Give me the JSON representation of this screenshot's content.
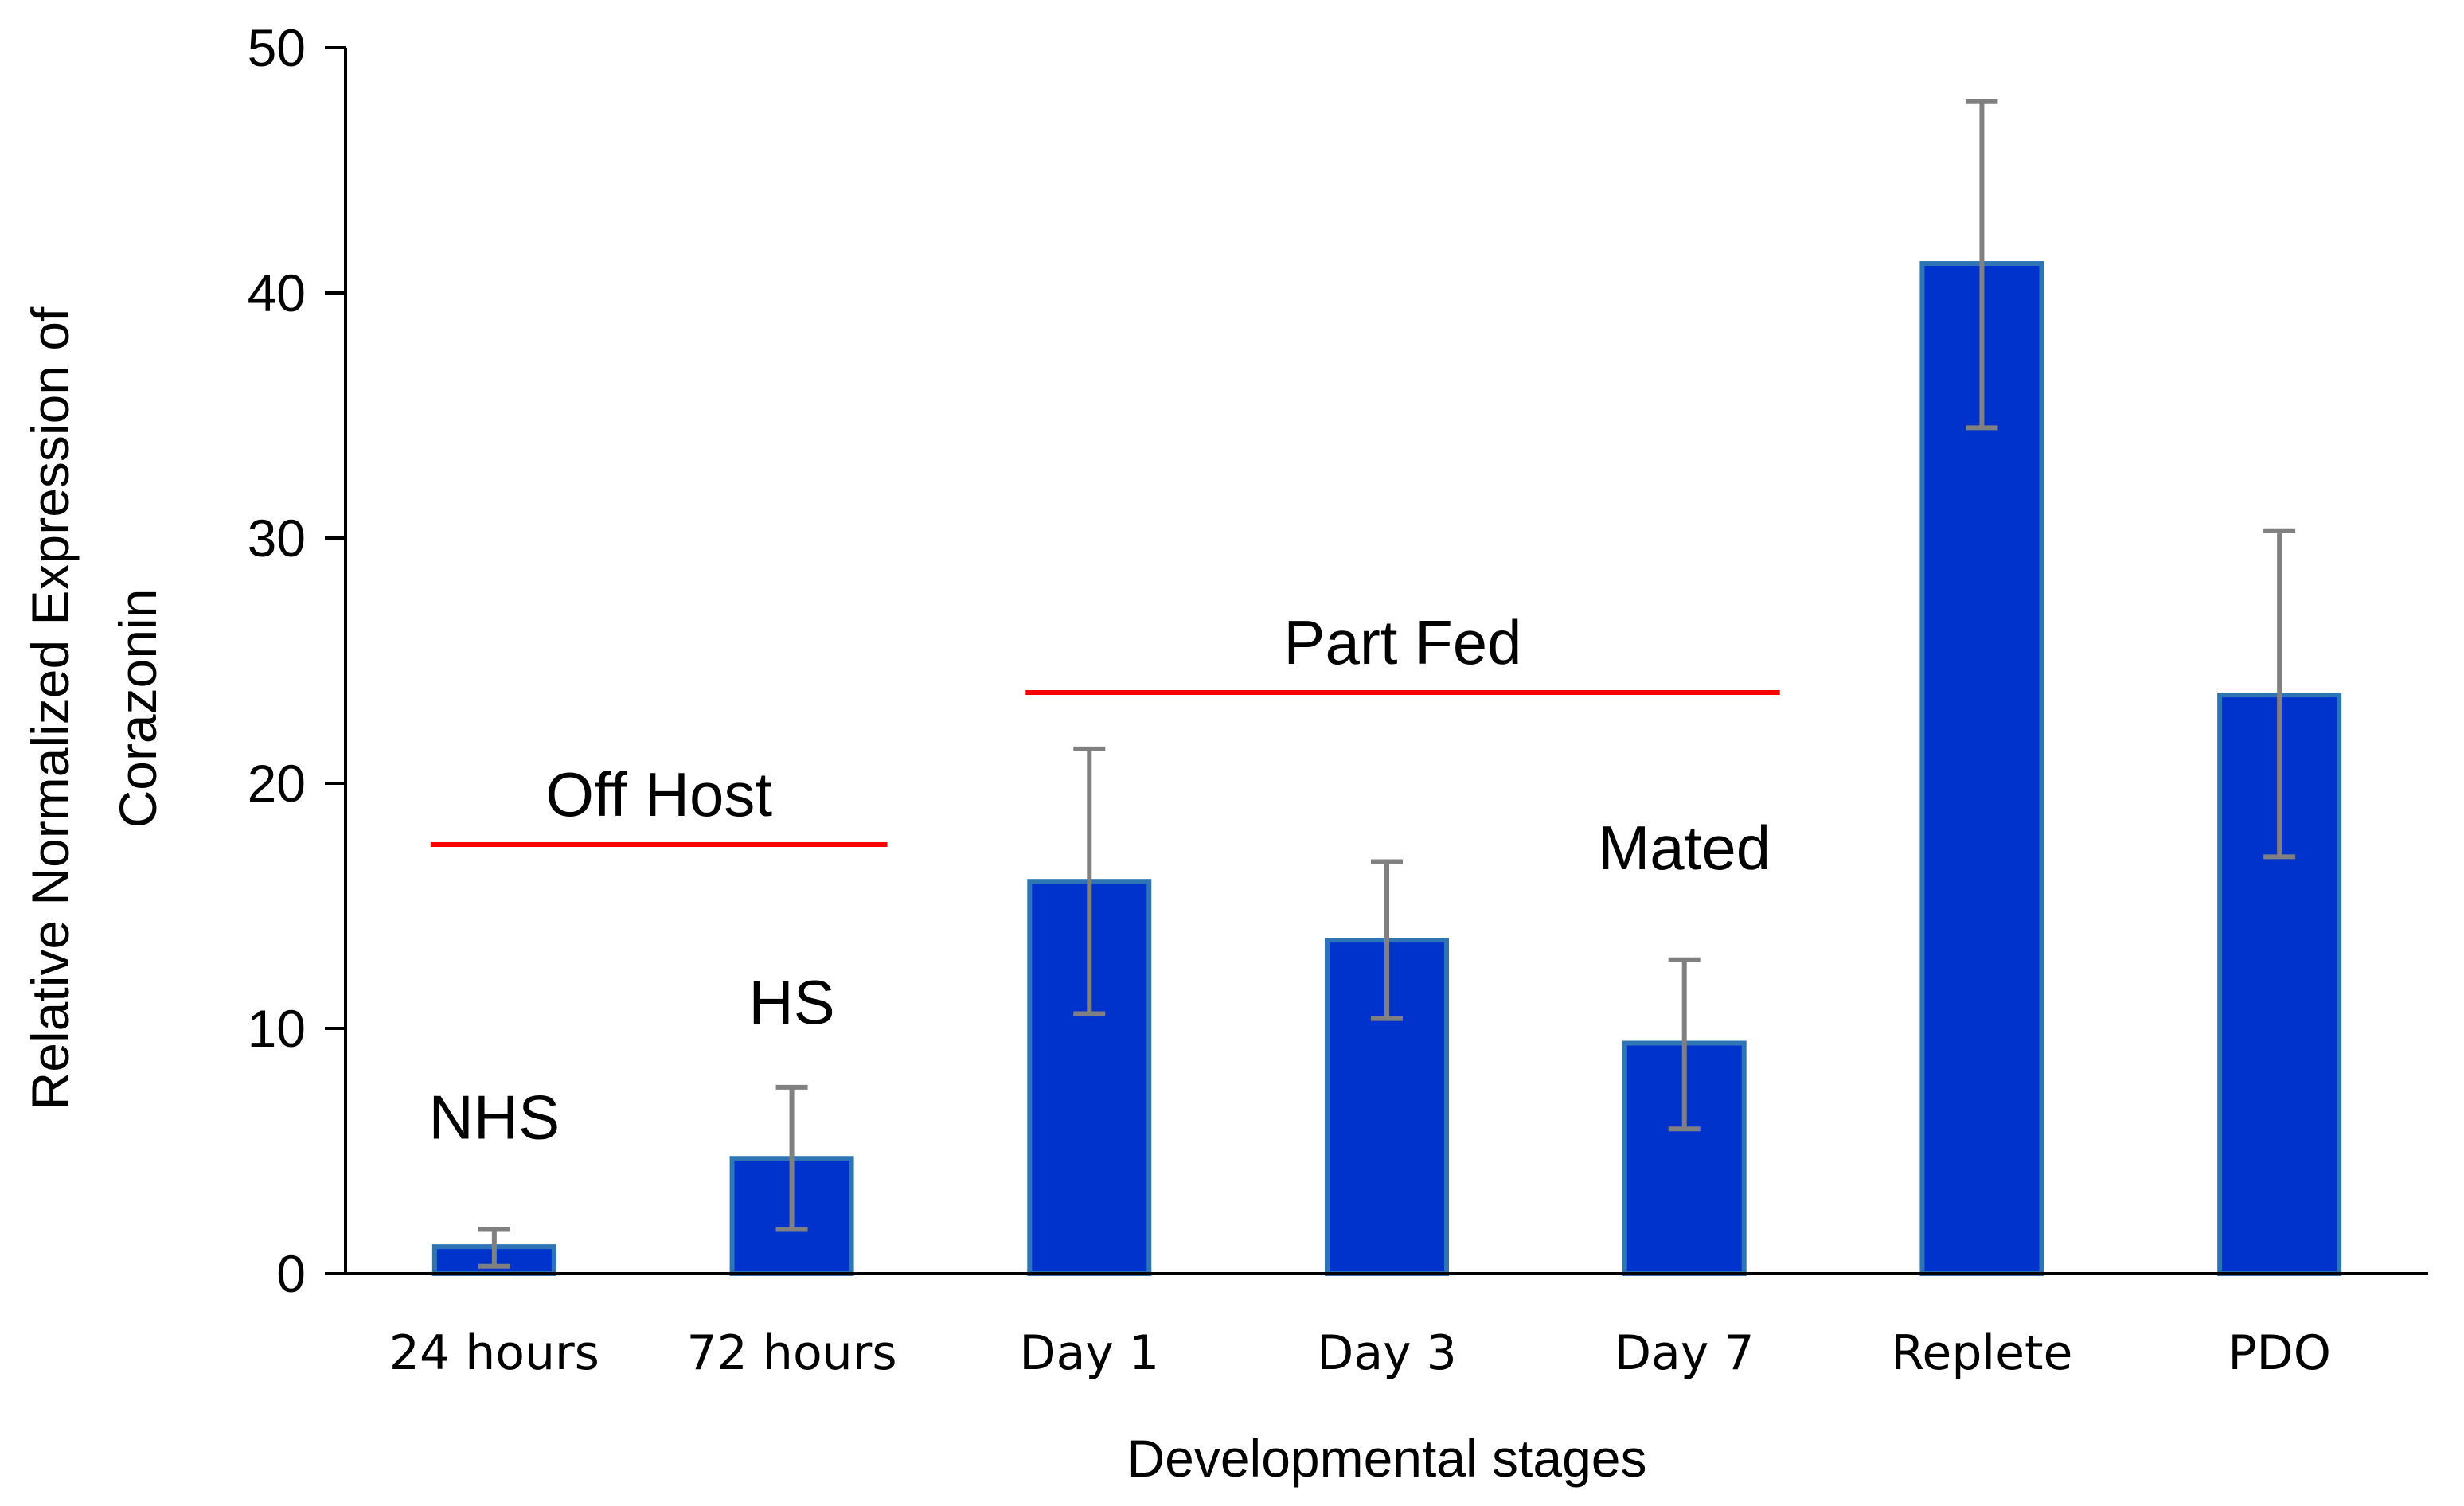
{
  "chart_data": {
    "type": "bar",
    "title": "",
    "xlabel": "Developmental stages",
    "ylabel_lines": [
      "Relative Normalized Expression of",
      "Corazonin"
    ],
    "ylim": [
      0,
      50
    ],
    "yticks": [
      0,
      10,
      20,
      30,
      40,
      50
    ],
    "grid": false,
    "legend": "none",
    "categories": [
      "24 hours",
      "72 hours",
      "Day 1",
      "Day 3",
      "Day 7",
      "Replete",
      "PDO"
    ],
    "values": [
      1.1,
      4.7,
      16.0,
      13.6,
      9.4,
      41.2,
      23.6
    ],
    "error_low": [
      0.3,
      1.8,
      10.6,
      10.4,
      5.9,
      34.5,
      17.0
    ],
    "error_high": [
      1.8,
      7.6,
      21.4,
      16.8,
      12.8,
      47.8,
      30.3
    ],
    "bar_color": "#0033CC",
    "bar_edge_color": "#2E75B6",
    "error_color": "#808080",
    "annotation_line_color": "#FF0000",
    "annotations": [
      {
        "text": "NHS",
        "category": "24 hours",
        "y": 5.5
      },
      {
        "text": "HS",
        "category": "72 hours",
        "y": 10.2
      },
      {
        "text": "Mated",
        "category": "Day 7",
        "y": 16.5
      },
      {
        "text": "Off Host",
        "category_span": [
          "24 hours",
          "72 hours"
        ],
        "y": 17.5
      },
      {
        "text": "Part Fed",
        "category_span": [
          "Day 1",
          "Day 7"
        ],
        "y": 23.7
      }
    ]
  }
}
